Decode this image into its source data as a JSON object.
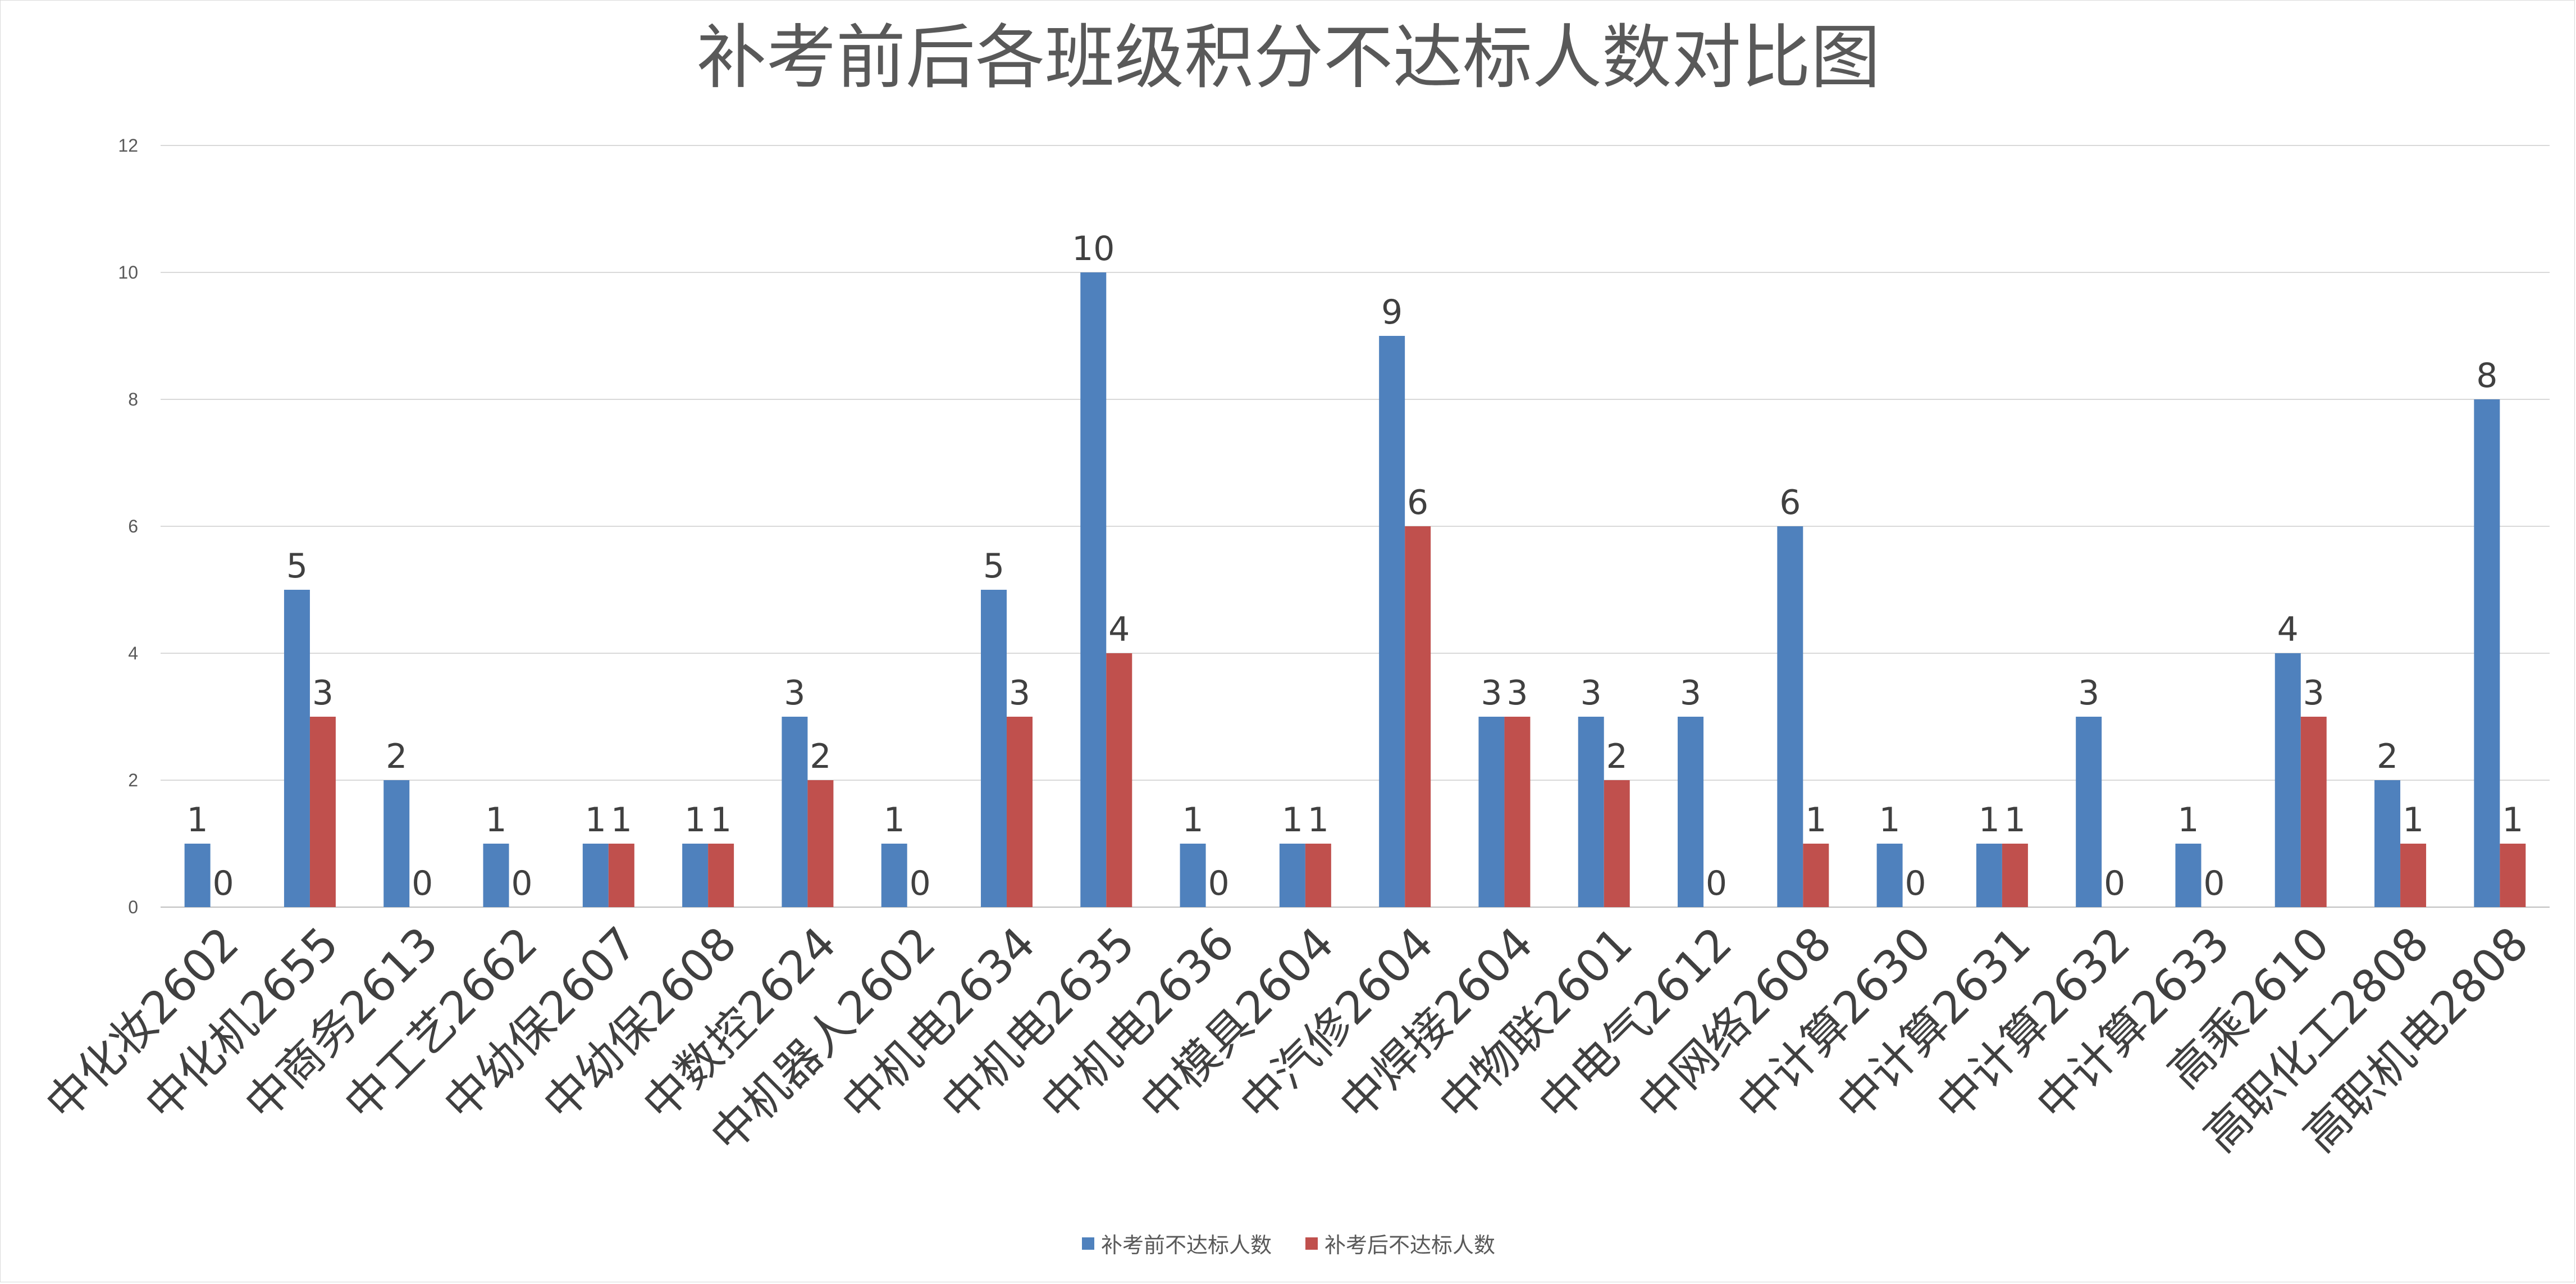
{
  "chart_data": {
    "type": "bar",
    "title": "补考前后各班级积分不达标人数对比图",
    "xlabel": "",
    "ylabel": "",
    "ylim": [
      0,
      12
    ],
    "yticks": [
      "0",
      "2",
      "4",
      "6",
      "8",
      "10",
      "12"
    ],
    "grid": true,
    "legend_position": "bottom",
    "categories": [
      "中化妆2602",
      "中化机2655",
      "中商务2613",
      "中工艺2662",
      "中幼保2607",
      "中幼保2608",
      "中数控2624",
      "中机器人2602",
      "中机电2634",
      "中机电2635",
      "中机电2636",
      "中模具2604",
      "中汽修2604",
      "中焊接2604",
      "中物联2601",
      "中电气2612",
      "中网络2608",
      "中计算2630",
      "中计算2631",
      "中计算2632",
      "中计算2633",
      "高乘2610",
      "高职化工2808",
      "高职机电2808"
    ],
    "series": [
      {
        "name": "补考前不达标人数",
        "color": "#4f81bd",
        "values": [
          1,
          5,
          2,
          1,
          1,
          1,
          3,
          1,
          5,
          10,
          1,
          1,
          9,
          3,
          3,
          3,
          6,
          1,
          1,
          3,
          1,
          4,
          2,
          8
        ]
      },
      {
        "name": "补考后不达标人数",
        "color": "#c0504d",
        "values": [
          0,
          3,
          0,
          0,
          1,
          1,
          2,
          0,
          3,
          4,
          0,
          1,
          6,
          3,
          2,
          0,
          1,
          0,
          1,
          0,
          0,
          3,
          1,
          1
        ]
      }
    ]
  }
}
